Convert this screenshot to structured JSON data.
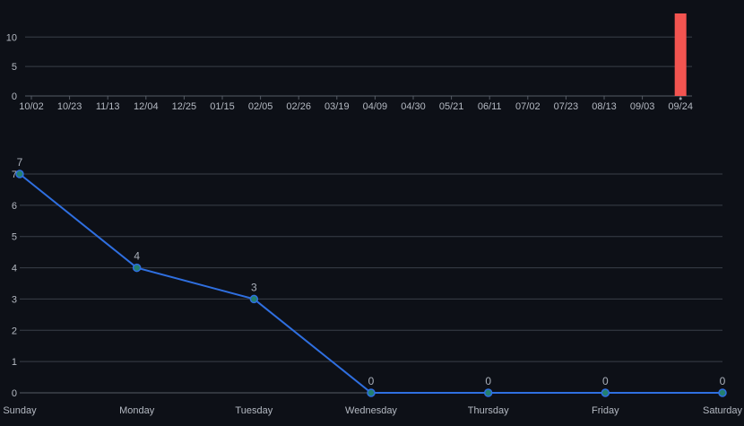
{
  "colors": {
    "background": "#0d1017",
    "grid": "#3a3f48",
    "bar": "#f25450",
    "line": "#2f6fe0",
    "marker_fill": "#23806f",
    "text": "#b4b9c2"
  },
  "chart_data": [
    {
      "type": "bar",
      "title": "",
      "xlabel": "",
      "ylabel": "",
      "ylim": [
        0,
        14
      ],
      "yticks": [
        0,
        5,
        10
      ],
      "grid": true,
      "x_tick_labels": [
        "10/02",
        "10/23",
        "11/13",
        "12/04",
        "12/25",
        "01/15",
        "02/05",
        "02/26",
        "03/19",
        "04/09",
        "04/30",
        "05/21",
        "06/11",
        "07/02",
        "07/23",
        "08/13",
        "09/03",
        "09/24"
      ],
      "bars": [
        {
          "x": "09/24",
          "value": 14
        }
      ]
    },
    {
      "type": "line",
      "title": "",
      "xlabel": "",
      "ylabel": "",
      "ylim": [
        0,
        7
      ],
      "yticks": [
        0,
        1,
        2,
        3,
        4,
        5,
        6,
        7
      ],
      "grid": true,
      "categories": [
        "Sunday",
        "Monday",
        "Tuesday",
        "Wednesday",
        "Thursday",
        "Friday",
        "Saturday"
      ],
      "values": [
        7,
        4,
        3,
        0,
        0,
        0,
        0
      ],
      "data_labels": [
        "7",
        "4",
        "3",
        "0",
        "0",
        "0",
        "0"
      ]
    }
  ]
}
